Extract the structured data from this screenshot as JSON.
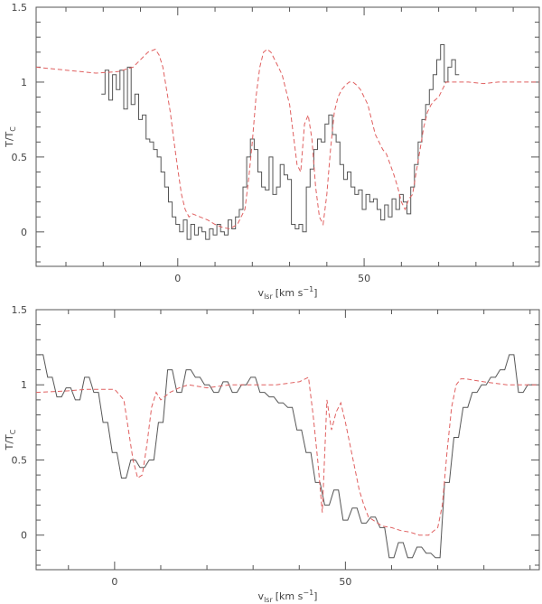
{
  "colors": {
    "frame": "#555555",
    "hist": "#555555",
    "dashed": "#e06060"
  },
  "chart_data": [
    {
      "type": "line",
      "xlabel_main": "v",
      "xlabel_sub": "lsr",
      "xlabel_units": "[km s",
      "xlabel_exp": "−1",
      "xlabel_close": "]",
      "ylabel_main": "T/T",
      "ylabel_sub": "C",
      "xlim": [
        -38,
        97
      ],
      "ylim": [
        -0.23,
        1.5
      ],
      "x_ticks": [
        0,
        50
      ],
      "x_tick_labels": [
        "0",
        "50"
      ],
      "y_ticks": [
        0,
        0.5,
        1,
        1.5
      ],
      "y_tick_labels": [
        "0",
        "0.5",
        "1",
        "1.5"
      ],
      "series": [
        {
          "style": "step",
          "x": [
            -20,
            -19,
            -18,
            -17,
            -16,
            -15,
            -14,
            -13,
            -12,
            -11,
            -10,
            -9,
            -8,
            -7,
            -6,
            -5,
            -4,
            -3,
            -2,
            -1,
            0,
            1,
            2,
            3,
            4,
            5,
            6,
            7,
            8,
            9,
            10,
            11,
            12,
            13,
            14,
            15,
            16,
            17,
            18,
            19,
            20,
            21,
            22,
            23,
            24,
            25,
            26,
            27,
            28,
            29,
            30,
            31,
            32,
            33,
            34,
            35,
            36,
            37,
            38,
            39,
            40,
            41,
            42,
            43,
            44,
            45,
            46,
            47,
            48,
            49,
            50,
            51,
            52,
            53,
            54,
            55,
            56,
            57,
            58,
            59,
            60,
            61,
            62,
            63,
            64,
            65,
            66,
            67,
            68,
            69,
            70,
            71,
            72,
            73,
            74,
            75
          ],
          "y": [
            0.92,
            1.08,
            0.88,
            1.05,
            0.95,
            1.08,
            0.82,
            1.1,
            0.85,
            0.92,
            0.75,
            0.78,
            0.62,
            0.6,
            0.55,
            0.5,
            0.4,
            0.3,
            0.2,
            0.1,
            0.05,
            0.0,
            0.08,
            -0.05,
            0.05,
            -0.02,
            0.03,
            0.0,
            -0.05,
            0.02,
            -0.02,
            0.05,
            0.0,
            -0.02,
            0.08,
            0.02,
            0.1,
            0.15,
            0.3,
            0.5,
            0.62,
            0.55,
            0.4,
            0.3,
            0.28,
            0.5,
            0.25,
            0.3,
            0.45,
            0.38,
            0.35,
            0.05,
            0.02,
            0.05,
            0.0,
            0.3,
            0.42,
            0.55,
            0.62,
            0.6,
            0.72,
            0.78,
            0.65,
            0.6,
            0.45,
            0.35,
            0.4,
            0.3,
            0.25,
            0.28,
            0.15,
            0.25,
            0.2,
            0.22,
            0.15,
            0.08,
            0.18,
            0.1,
            0.22,
            0.15,
            0.25,
            0.2,
            0.12,
            0.3,
            0.45,
            0.6,
            0.75,
            0.85,
            0.95,
            1.05,
            1.15,
            1.25,
            1.0,
            1.1,
            1.15,
            1.05
          ]
        },
        {
          "style": "dashed",
          "x": [
            -38,
            -30,
            -22,
            -16,
            -12,
            -8,
            -6,
            -5,
            -4,
            -3,
            -2,
            -1,
            0,
            1,
            2,
            3,
            4,
            6,
            8,
            10,
            12,
            14,
            16,
            18,
            19,
            20,
            21,
            22,
            23,
            24,
            25,
            26,
            27,
            28,
            29,
            30,
            31,
            32,
            33,
            34,
            35,
            36,
            37,
            38,
            39,
            40,
            41,
            42,
            43,
            44,
            45,
            46,
            47,
            48,
            49,
            50,
            51,
            52,
            53,
            54,
            55,
            56,
            57,
            58,
            59,
            60,
            61,
            62,
            63,
            64,
            65,
            66,
            67,
            68,
            69,
            70,
            71,
            72,
            74,
            78,
            82,
            86,
            90,
            97
          ],
          "y": [
            1.1,
            1.08,
            1.06,
            1.07,
            1.1,
            1.2,
            1.22,
            1.18,
            1.1,
            0.95,
            0.8,
            0.6,
            0.42,
            0.25,
            0.15,
            0.1,
            0.12,
            0.1,
            0.08,
            0.05,
            0.03,
            0.02,
            0.05,
            0.15,
            0.35,
            0.6,
            0.9,
            1.1,
            1.2,
            1.22,
            1.2,
            1.15,
            1.1,
            1.05,
            0.95,
            0.85,
            0.65,
            0.45,
            0.4,
            0.72,
            0.78,
            0.62,
            0.3,
            0.1,
            0.05,
            0.25,
            0.55,
            0.8,
            0.9,
            0.95,
            0.98,
            1.0,
            1.0,
            0.98,
            0.95,
            0.9,
            0.85,
            0.75,
            0.65,
            0.6,
            0.55,
            0.52,
            0.45,
            0.38,
            0.3,
            0.2,
            0.15,
            0.22,
            0.25,
            0.4,
            0.55,
            0.7,
            0.8,
            0.85,
            0.88,
            0.9,
            0.95,
            1.0,
            1.0,
            1.0,
            0.99,
            1.0,
            1.0,
            1.0
          ]
        }
      ]
    },
    {
      "type": "line",
      "xlabel_main": "v",
      "xlabel_sub": "lsr",
      "xlabel_units": "[km s",
      "xlabel_exp": "−1",
      "xlabel_close": "]",
      "ylabel_main": "T/T",
      "ylabel_sub": "C",
      "xlim": [
        -17,
        92
      ],
      "ylim": [
        -0.23,
        1.5
      ],
      "x_ticks": [
        0,
        50
      ],
      "x_tick_labels": [
        "0",
        "50"
      ],
      "y_ticks": [
        0,
        0.5,
        1,
        1.5
      ],
      "y_tick_labels": [
        "0",
        "0.5",
        "1",
        "1.5"
      ],
      "series": [
        {
          "style": "step",
          "x": [
            -16,
            -14,
            -12,
            -10,
            -8,
            -6,
            -4,
            -2,
            0,
            2,
            4,
            6,
            8,
            10,
            12,
            14,
            16,
            18,
            20,
            22,
            24,
            26,
            28,
            30,
            32,
            34,
            36,
            38,
            40,
            42,
            44,
            46,
            48,
            50,
            52,
            54,
            56,
            58,
            60,
            62,
            64,
            66,
            68,
            70,
            72,
            74,
            76,
            78,
            80,
            82,
            84,
            86,
            88,
            90
          ],
          "y": [
            1.2,
            1.05,
            0.92,
            0.98,
            0.9,
            1.05,
            0.95,
            0.75,
            0.55,
            0.38,
            0.5,
            0.45,
            0.5,
            0.75,
            1.1,
            0.95,
            1.1,
            1.05,
            1.0,
            0.95,
            1.02,
            0.95,
            1.0,
            1.05,
            0.95,
            0.92,
            0.88,
            0.85,
            0.7,
            0.55,
            0.35,
            0.2,
            0.3,
            0.1,
            0.18,
            0.08,
            0.12,
            0.05,
            -0.15,
            -0.05,
            -0.15,
            -0.08,
            -0.12,
            -0.15,
            0.35,
            0.65,
            0.85,
            0.95,
            1.0,
            1.05,
            1.1,
            1.2,
            0.95,
            1.0
          ]
        },
        {
          "style": "dashed",
          "x": [
            -17,
            -10,
            -6,
            0,
            2,
            3,
            4,
            5,
            6,
            7,
            8,
            9,
            10,
            12,
            14,
            16,
            20,
            25,
            30,
            35,
            40,
            42,
            43,
            44,
            45,
            46,
            47,
            48,
            49,
            50,
            51,
            52,
            53,
            54,
            55,
            56,
            58,
            60,
            62,
            64,
            66,
            68,
            70,
            71,
            72,
            73,
            74,
            75,
            76,
            80,
            85,
            92
          ],
          "y": [
            0.95,
            0.96,
            0.97,
            0.97,
            0.9,
            0.7,
            0.5,
            0.38,
            0.4,
            0.6,
            0.85,
            0.95,
            0.9,
            0.95,
            0.98,
            1.0,
            0.98,
            1.0,
            1.0,
            1.0,
            1.02,
            1.05,
            0.8,
            0.5,
            0.15,
            0.9,
            0.7,
            0.82,
            0.88,
            0.75,
            0.6,
            0.45,
            0.3,
            0.2,
            0.12,
            0.1,
            0.06,
            0.05,
            0.03,
            0.02,
            0.0,
            0.0,
            0.05,
            0.2,
            0.55,
            0.85,
            1.0,
            1.04,
            1.04,
            1.02,
            1.0,
            1.0
          ]
        }
      ]
    }
  ]
}
